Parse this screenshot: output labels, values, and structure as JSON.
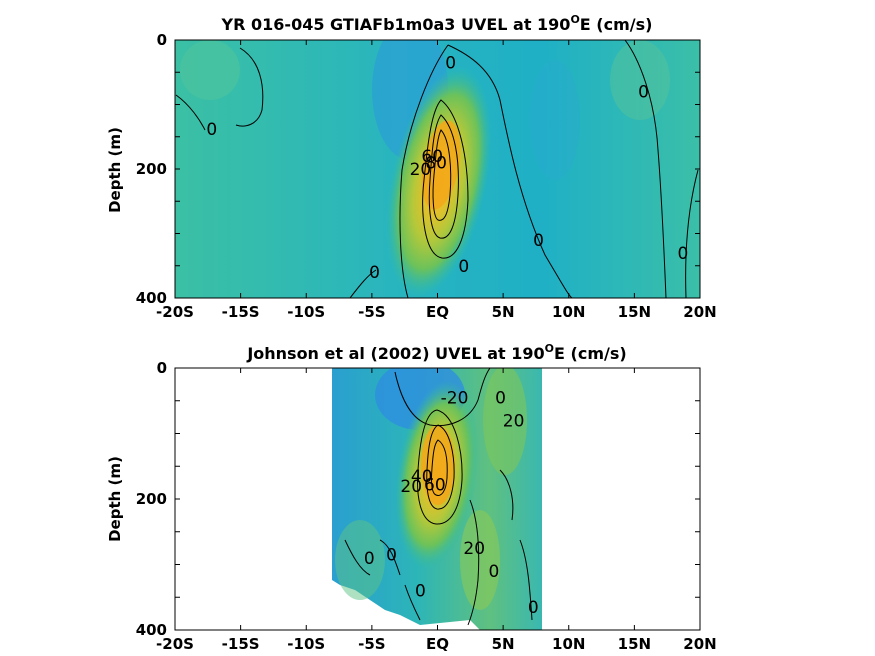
{
  "chart_data": [
    {
      "type": "heatmap",
      "title_main": "YR 016-045 GTIAFb1m0a3 UVEL at 190",
      "title_sup": "O",
      "title_end": "E (cm/s)",
      "xlabel": "",
      "ylabel": "Depth (m)",
      "xlim": [
        -20,
        20
      ],
      "ylim": [
        0,
        400
      ],
      "xticks": [
        -20,
        -15,
        -10,
        -5,
        0,
        5,
        10,
        15,
        20
      ],
      "xtick_labels": [
        "-20S",
        "-15S",
        "-10S",
        "-5S",
        "EQ",
        "5N",
        "10N",
        "15N",
        "20N"
      ],
      "yticks": [
        0,
        200,
        400
      ],
      "ytick_labels": [
        "0",
        "200",
        "400"
      ],
      "data_extent_x": [
        -20,
        20
      ],
      "core": {
        "lat": 0.3,
        "depth": 175,
        "max_speed_cm_s": 100
      },
      "contour_labels": [
        {
          "text": "0",
          "lat": 1.0,
          "depth": 35
        },
        {
          "text": "0",
          "lat": 15.7,
          "depth": 80
        },
        {
          "text": "0",
          "lat": -17.2,
          "depth": 138
        },
        {
          "text": "20",
          "lat": -1.3,
          "depth": 200
        },
        {
          "text": "60",
          "lat": -0.4,
          "depth": 180
        },
        {
          "text": "80",
          "lat": -0.1,
          "depth": 190
        },
        {
          "text": "0",
          "lat": 7.7,
          "depth": 310
        },
        {
          "text": "0",
          "lat": 18.7,
          "depth": 330
        },
        {
          "text": "0",
          "lat": -4.8,
          "depth": 360
        },
        {
          "text": "0",
          "lat": 2.0,
          "depth": 350
        }
      ]
    },
    {
      "type": "heatmap",
      "title_main": "Johnson et al (2002) UVEL at 190",
      "title_sup": "O",
      "title_end": "E (cm/s)",
      "xlabel": "",
      "ylabel": "Depth (m)",
      "xlim": [
        -20,
        20
      ],
      "ylim": [
        0,
        400
      ],
      "xticks": [
        -20,
        -15,
        -10,
        -5,
        0,
        5,
        10,
        15,
        20
      ],
      "xtick_labels": [
        "-20S",
        "-15S",
        "-10S",
        "-5S",
        "EQ",
        "5N",
        "10N",
        "15N",
        "20N"
      ],
      "yticks": [
        0,
        200,
        400
      ],
      "ytick_labels": [
        "0",
        "200",
        "400"
      ],
      "data_extent_x": [
        -8,
        8
      ],
      "core": {
        "lat": 0.2,
        "depth": 155,
        "max_speed_cm_s": 100
      },
      "contour_labels": [
        {
          "text": "-20",
          "lat": 1.3,
          "depth": 45
        },
        {
          "text": "0",
          "lat": 4.8,
          "depth": 45
        },
        {
          "text": "20",
          "lat": 5.8,
          "depth": 80
        },
        {
          "text": "20",
          "lat": -2.0,
          "depth": 180
        },
        {
          "text": "40",
          "lat": -1.2,
          "depth": 165
        },
        {
          "text": "60",
          "lat": -0.2,
          "depth": 178
        },
        {
          "text": "0",
          "lat": -3.5,
          "depth": 285
        },
        {
          "text": "0",
          "lat": -5.2,
          "depth": 290
        },
        {
          "text": "20",
          "lat": 2.8,
          "depth": 275
        },
        {
          "text": "0",
          "lat": 4.3,
          "depth": 310
        },
        {
          "text": "0",
          "lat": -1.3,
          "depth": 340
        },
        {
          "text": "0",
          "lat": 7.3,
          "depth": 365
        }
      ]
    }
  ]
}
